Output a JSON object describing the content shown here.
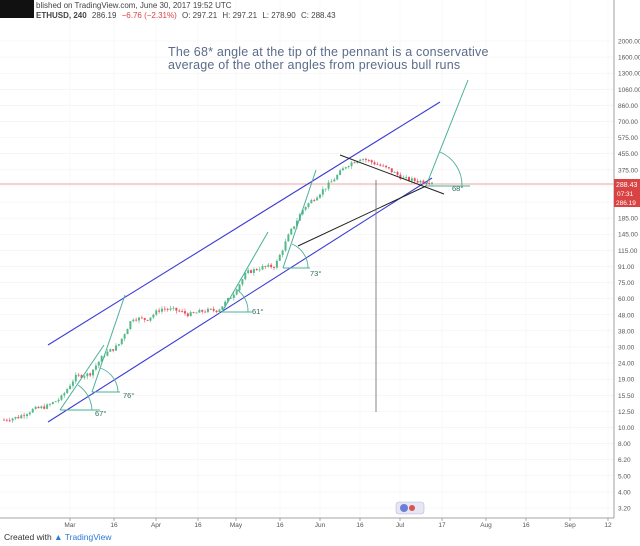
{
  "header": {
    "publish": "blished on TradingView.com, June 30, 2017 19:52 UTC",
    "symbol": "ETHUSD, 240",
    "last": "286.19",
    "change": "−6.76 (−2.31%)",
    "open": "O: 297.21",
    "high": "H: 297.21",
    "low": "L: 278.90",
    "close": "C: 288.43"
  },
  "annotation": {
    "line1": "The 68* angle at the tip of the pennant is a conservative",
    "line2": "average of the other angles from previous bull runs"
  },
  "footer": {
    "created": "Created with",
    "brand": "TradingView"
  },
  "colors": {
    "up": "#53b987",
    "down": "#eb4d5c",
    "channel": "#3c3cd6",
    "angle": "#4caf9a",
    "price": "#d94343"
  },
  "chart_data": {
    "type": "candlestick",
    "symbol": "ETHUSD",
    "interval": "240",
    "scale": "log",
    "yticks": [
      "2000.00",
      "1600.00",
      "1300.00",
      "1060.00",
      "860.00",
      "700.00",
      "575.00",
      "455.00",
      "375.00",
      "300.00",
      "245.00",
      "185.00",
      "145.00",
      "115.00",
      "91.00",
      "75.00",
      "60.00",
      "48.00",
      "38.00",
      "30.00",
      "24.00",
      "19.00",
      "15.50",
      "12.50",
      "10.00",
      "8.00",
      "6.20",
      "5.00",
      "4.00",
      "3.20"
    ],
    "xticks": [
      "Mar",
      "16",
      "Apr",
      "16",
      "May",
      "16",
      "Jun",
      "16",
      "Jul",
      "17",
      "Aug",
      "16",
      "Sep",
      "12"
    ],
    "price_labels": [
      "288.43",
      "07:31",
      "286.19"
    ],
    "approx_close_series": [
      [
        "Feb 3",
        10.8
      ],
      [
        "Feb 10",
        11.2
      ],
      [
        "Feb 17",
        12.4
      ],
      [
        "Feb 24",
        13.0
      ],
      [
        "Mar 1",
        14.6
      ],
      [
        "Mar 6",
        19.5
      ],
      [
        "Mar 10",
        20.3
      ],
      [
        "Mar 13",
        26.5
      ],
      [
        "Mar 15",
        30.0
      ],
      [
        "Mar 17",
        44.0
      ],
      [
        "Mar 20",
        43.0
      ],
      [
        "Mar 25",
        50.0
      ],
      [
        "Apr 1",
        49.0
      ],
      [
        "Apr 10",
        46.0
      ],
      [
        "Apr 20",
        48.5
      ],
      [
        "May 1",
        49.0
      ],
      [
        "May 5",
        60.0
      ],
      [
        "May 10",
        82.0
      ],
      [
        "May 17",
        88.0
      ],
      [
        "May 24",
        90.0
      ],
      [
        "May 28",
        140.0
      ],
      [
        "Jun 1",
        200.0
      ],
      [
        "Jun 5",
        240.0
      ],
      [
        "Jun 9",
        290.0
      ],
      [
        "Jun 12",
        360.0
      ],
      [
        "Jun 13",
        400.0
      ],
      [
        "Jun 17",
        370.0
      ],
      [
        "Jun 21",
        340.0
      ],
      [
        "Jun 24",
        300.0
      ],
      [
        "Jun 27",
        290.0
      ],
      [
        "Jun 30",
        288.43
      ]
    ],
    "angle_labels": [
      "67°",
      "76°",
      "61°",
      "73°",
      "68°"
    ]
  }
}
